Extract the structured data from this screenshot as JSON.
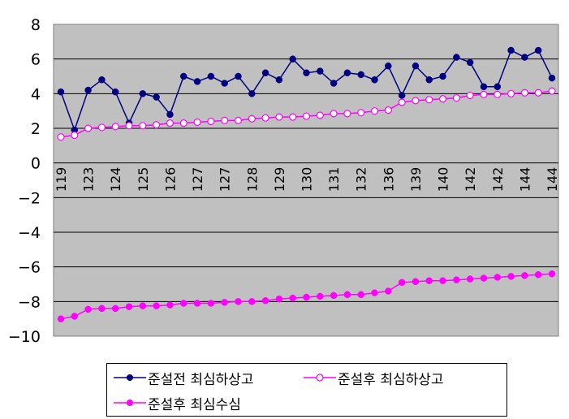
{
  "chart_data": {
    "type": "line",
    "title": "",
    "xlabel": "",
    "ylabel": "",
    "ylim": [
      -10,
      8
    ],
    "yticks": [
      8,
      6,
      4,
      2,
      0,
      -2,
      -4,
      -6,
      -8,
      -10
    ],
    "ytick_labels": [
      "8",
      "6",
      "4",
      "2",
      "0",
      "−2",
      "−4",
      "−6",
      "−8",
      "−10"
    ],
    "grid": "horizontal",
    "plot_background": "#C0C0C0",
    "legend_position": "bottom",
    "x_tick_labels": [
      "119",
      "123",
      "124",
      "125",
      "126",
      "127",
      "127",
      "128",
      "129",
      "130",
      "131",
      "132",
      "136",
      "139",
      "140",
      "142",
      "142",
      "144",
      "144"
    ],
    "series": [
      {
        "name": "준설전 최심하상고",
        "color": "#000080",
        "marker": "filled-circle",
        "values": [
          4.1,
          1.9,
          4.2,
          4.8,
          4.1,
          2.3,
          4.0,
          3.8,
          2.8,
          5.0,
          4.7,
          5.0,
          4.6,
          5.0,
          4.0,
          5.2,
          4.8,
          6.0,
          5.2,
          5.3,
          4.6,
          5.2,
          5.1,
          4.8,
          5.6,
          3.9,
          5.6,
          4.8,
          5.0,
          6.1,
          5.8,
          4.4,
          4.4,
          6.5,
          6.1,
          6.5,
          4.9
        ]
      },
      {
        "name": "준설후 최심하상고",
        "color": "#FF00FF",
        "marker": "hollow-circle",
        "values": [
          1.5,
          1.6,
          2.0,
          2.05,
          2.1,
          2.15,
          2.15,
          2.2,
          2.3,
          2.3,
          2.35,
          2.4,
          2.45,
          2.45,
          2.55,
          2.6,
          2.65,
          2.65,
          2.7,
          2.75,
          2.85,
          2.85,
          2.9,
          3.0,
          3.05,
          3.5,
          3.6,
          3.65,
          3.7,
          3.75,
          3.9,
          3.95,
          3.95,
          4.0,
          4.05,
          4.05,
          4.15
        ]
      },
      {
        "name": "준설후 최심수심",
        "color": "#FF00FF",
        "marker": "filled-circle",
        "values": [
          -9.0,
          -8.85,
          -8.45,
          -8.4,
          -8.4,
          -8.3,
          -8.25,
          -8.25,
          -8.2,
          -8.1,
          -8.1,
          -8.1,
          -8.05,
          -8.0,
          -8.0,
          -7.95,
          -7.85,
          -7.8,
          -7.75,
          -7.7,
          -7.65,
          -7.6,
          -7.6,
          -7.5,
          -7.4,
          -6.9,
          -6.85,
          -6.8,
          -6.8,
          -6.75,
          -6.7,
          -6.65,
          -6.6,
          -6.55,
          -6.5,
          -6.45,
          -6.4
        ]
      }
    ]
  }
}
